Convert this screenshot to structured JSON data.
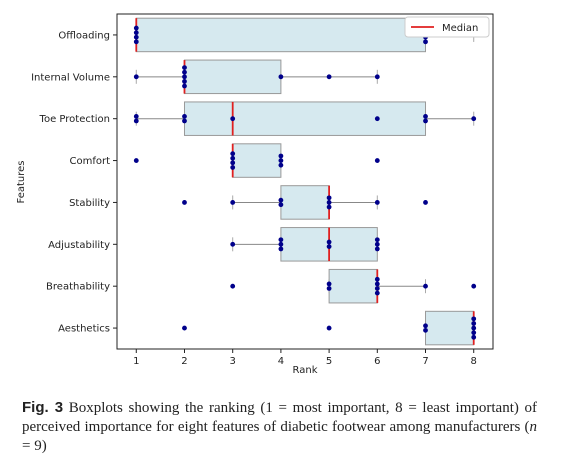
{
  "chart_data": {
    "type": "boxplot",
    "orientation": "horizontal",
    "xlabel": "Rank",
    "ylabel": "Features",
    "xlim": [
      0.6,
      8.4
    ],
    "xticks": [
      1,
      2,
      3,
      4,
      5,
      6,
      7,
      8
    ],
    "legend": {
      "placement": "top-right",
      "entries": [
        {
          "label": "Median",
          "color": "#e02020"
        }
      ]
    },
    "box_fill": "#d6e9ef",
    "point_color": "#00008b",
    "median_color": "#e02020",
    "features": [
      {
        "name": "Offloading",
        "whisker_low": 1,
        "q1": 1,
        "median": 1,
        "q3": 7,
        "whisker_high": 8,
        "points": [
          1,
          1,
          1,
          1,
          7,
          7,
          7,
          7,
          8
        ]
      },
      {
        "name": "Internal Volume",
        "whisker_low": 1,
        "q1": 2,
        "median": 2,
        "q3": 4,
        "whisker_high": 6,
        "points": [
          1,
          2,
          2,
          2,
          2,
          2,
          4,
          5,
          6
        ]
      },
      {
        "name": "Toe Protection",
        "whisker_low": 1,
        "q1": 2,
        "median": 3,
        "q3": 7,
        "whisker_high": 8,
        "points": [
          1,
          1,
          2,
          2,
          3,
          6,
          7,
          7,
          8
        ]
      },
      {
        "name": "Comfort",
        "whisker_low": 3,
        "q1": 3,
        "median": 3,
        "q3": 4,
        "whisker_high": 4,
        "points": [
          1,
          3,
          3,
          3,
          3,
          4,
          4,
          4,
          6
        ]
      },
      {
        "name": "Stability",
        "whisker_low": 3,
        "q1": 4,
        "median": 5,
        "q3": 5,
        "whisker_high": 6,
        "points": [
          2,
          3,
          4,
          4,
          5,
          5,
          5,
          6,
          7
        ]
      },
      {
        "name": "Adjustability",
        "whisker_low": 3,
        "q1": 4,
        "median": 5,
        "q3": 6,
        "whisker_high": 6,
        "points": [
          3,
          4,
          4,
          4,
          5,
          5,
          6,
          6,
          6
        ]
      },
      {
        "name": "Breathability",
        "whisker_low": 5,
        "q1": 5,
        "median": 6,
        "q3": 6,
        "whisker_high": 7,
        "points": [
          3,
          5,
          5,
          6,
          6,
          6,
          6,
          7,
          8
        ]
      },
      {
        "name": "Aesthetics",
        "whisker_low": 7,
        "q1": 7,
        "median": 8,
        "q3": 8,
        "whisker_high": 8,
        "points": [
          2,
          5,
          7,
          7,
          8,
          8,
          8,
          8,
          8
        ]
      }
    ]
  },
  "caption": {
    "label": "Fig. 3",
    "text_before_n": " Boxplots showing the ranking (1 = most important, 8 = least important) of perceived importance for eight features of diabetic footwear among manufacturers (",
    "n_symbol": "n",
    "text_after_n": " = 9)"
  }
}
